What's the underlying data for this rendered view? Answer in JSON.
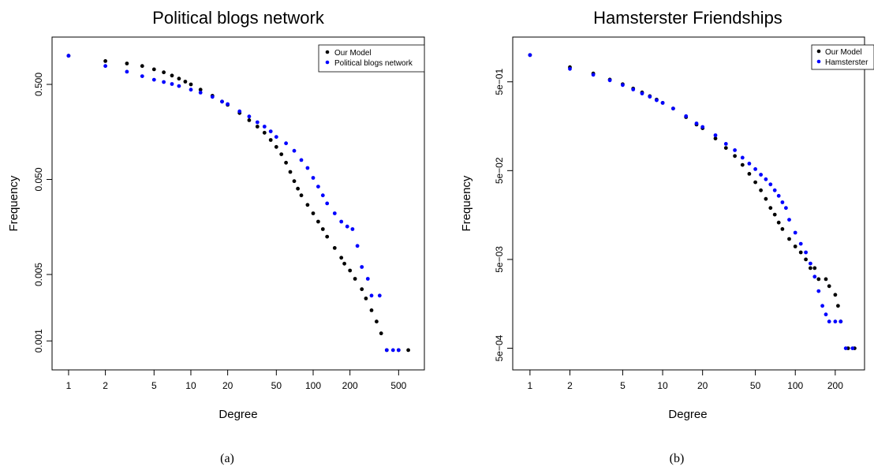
{
  "chart_data": [
    {
      "type": "scatter",
      "title": "Political blogs network",
      "xlabel": "Degree",
      "ylabel": "Frequency",
      "x_scale": "log",
      "y_scale": "log",
      "xlim": [
        0.85,
        700
      ],
      "ylim": [
        0.0006,
        1.3
      ],
      "x_ticks": [
        1,
        2,
        5,
        10,
        20,
        50,
        100,
        200,
        500
      ],
      "x_tick_labels": [
        "1",
        "2",
        "5",
        "10",
        "20",
        "50",
        "100",
        "200",
        "500"
      ],
      "y_ticks": [
        0.5,
        0.05,
        0.005,
        0.001
      ],
      "y_tick_labels": [
        "0.500",
        "0.050",
        "0.005",
        "0.001"
      ],
      "legend": {
        "position": "top-right",
        "entries": [
          {
            "name": "Our Model",
            "color": "#000000"
          },
          {
            "name": "Political blogs network",
            "color": "#0000ff"
          }
        ]
      },
      "series": [
        {
          "name": "Our Model",
          "color": "#000000",
          "points": [
            [
              1,
              1.0
            ],
            [
              2,
              0.88
            ],
            [
              3,
              0.83
            ],
            [
              4,
              0.78
            ],
            [
              5,
              0.72
            ],
            [
              6,
              0.67
            ],
            [
              7,
              0.62
            ],
            [
              8,
              0.575
            ],
            [
              9,
              0.535
            ],
            [
              10,
              0.5
            ],
            [
              12,
              0.44
            ],
            [
              15,
              0.38
            ],
            [
              18,
              0.33
            ],
            [
              20,
              0.305
            ],
            [
              25,
              0.25
            ],
            [
              30,
              0.21
            ],
            [
              35,
              0.18
            ],
            [
              40,
              0.155
            ],
            [
              45,
              0.13
            ],
            [
              50,
              0.11
            ],
            [
              55,
              0.092
            ],
            [
              60,
              0.075
            ],
            [
              65,
              0.06
            ],
            [
              70,
              0.048
            ],
            [
              75,
              0.04
            ],
            [
              80,
              0.034
            ],
            [
              90,
              0.027
            ],
            [
              100,
              0.022
            ],
            [
              110,
              0.018
            ],
            [
              120,
              0.015
            ],
            [
              130,
              0.0125
            ],
            [
              150,
              0.0095
            ],
            [
              170,
              0.0075
            ],
            [
              180,
              0.0065
            ],
            [
              200,
              0.0055
            ],
            [
              220,
              0.0045
            ],
            [
              250,
              0.0035
            ],
            [
              270,
              0.0028
            ],
            [
              300,
              0.0021
            ],
            [
              330,
              0.0016
            ],
            [
              360,
              0.0012
            ],
            [
              400,
              0.0008
            ],
            [
              500,
              0.0008
            ],
            [
              600,
              0.0008
            ]
          ]
        },
        {
          "name": "Political blogs network",
          "color": "#0000ff",
          "points": [
            [
              1,
              1.0
            ],
            [
              2,
              0.78
            ],
            [
              3,
              0.68
            ],
            [
              4,
              0.61
            ],
            [
              5,
              0.56
            ],
            [
              6,
              0.53
            ],
            [
              7,
              0.505
            ],
            [
              8,
              0.48
            ],
            [
              10,
              0.44
            ],
            [
              12,
              0.41
            ],
            [
              15,
              0.37
            ],
            [
              18,
              0.33
            ],
            [
              20,
              0.31
            ],
            [
              25,
              0.26
            ],
            [
              30,
              0.23
            ],
            [
              35,
              0.2
            ],
            [
              40,
              0.18
            ],
            [
              45,
              0.16
            ],
            [
              50,
              0.14
            ],
            [
              60,
              0.12
            ],
            [
              70,
              0.1
            ],
            [
              80,
              0.08
            ],
            [
              90,
              0.066
            ],
            [
              100,
              0.052
            ],
            [
              110,
              0.042
            ],
            [
              120,
              0.034
            ],
            [
              130,
              0.028
            ],
            [
              150,
              0.022
            ],
            [
              170,
              0.018
            ],
            [
              190,
              0.016
            ],
            [
              210,
              0.015
            ],
            [
              230,
              0.01
            ],
            [
              250,
              0.006
            ],
            [
              280,
              0.0045
            ],
            [
              300,
              0.003
            ],
            [
              350,
              0.003
            ],
            [
              400,
              0.0008
            ],
            [
              450,
              0.0008
            ],
            [
              500,
              0.0008
            ]
          ]
        }
      ]
    },
    {
      "type": "scatter",
      "title": "Hamsterster Friendships",
      "xlabel": "Degree",
      "ylabel": "Frequency",
      "x_scale": "log",
      "y_scale": "log",
      "xlim": [
        0.85,
        290
      ],
      "ylim": [
        0.00035,
        1.3
      ],
      "x_ticks": [
        1,
        2,
        5,
        10,
        20,
        50,
        100,
        200
      ],
      "x_tick_labels": [
        "1",
        "2",
        "5",
        "10",
        "20",
        "50",
        "100",
        "200"
      ],
      "y_ticks": [
        0.5,
        0.05,
        0.005,
        0.0005
      ],
      "y_tick_labels": [
        "5e−01",
        "5e−02",
        "5e−03",
        "5e−04"
      ],
      "legend": {
        "position": "top-right",
        "entries": [
          {
            "name": "Our Model",
            "color": "#000000"
          },
          {
            "name": "Hamsterster",
            "color": "#0000ff"
          }
        ]
      },
      "series": [
        {
          "name": "Our Model",
          "color": "#000000",
          "points": [
            [
              1,
              1.0
            ],
            [
              2,
              0.73
            ],
            [
              3,
              0.62
            ],
            [
              4,
              0.53
            ],
            [
              5,
              0.47
            ],
            [
              6,
              0.42
            ],
            [
              7,
              0.38
            ],
            [
              8,
              0.345
            ],
            [
              9,
              0.315
            ],
            [
              10,
              0.29
            ],
            [
              12,
              0.25
            ],
            [
              15,
              0.2
            ],
            [
              18,
              0.165
            ],
            [
              20,
              0.15
            ],
            [
              25,
              0.115
            ],
            [
              30,
              0.09
            ],
            [
              35,
              0.073
            ],
            [
              40,
              0.058
            ],
            [
              45,
              0.046
            ],
            [
              50,
              0.037
            ],
            [
              55,
              0.03
            ],
            [
              60,
              0.024
            ],
            [
              65,
              0.019
            ],
            [
              70,
              0.016
            ],
            [
              75,
              0.013
            ],
            [
              80,
              0.011
            ],
            [
              90,
              0.0085
            ],
            [
              100,
              0.007
            ],
            [
              110,
              0.006
            ],
            [
              120,
              0.005
            ],
            [
              130,
              0.004
            ],
            [
              140,
              0.004
            ],
            [
              150,
              0.003
            ],
            [
              170,
              0.003
            ],
            [
              180,
              0.0025
            ],
            [
              200,
              0.002
            ],
            [
              210,
              0.0015
            ],
            [
              220,
              0.001
            ],
            [
              250,
              0.0005
            ],
            [
              280,
              0.0005
            ]
          ]
        },
        {
          "name": "Hamsterster",
          "color": "#0000ff",
          "points": [
            [
              1,
              1.0
            ],
            [
              2,
              0.7
            ],
            [
              3,
              0.6
            ],
            [
              4,
              0.52
            ],
            [
              5,
              0.46
            ],
            [
              6,
              0.41
            ],
            [
              7,
              0.37
            ],
            [
              8,
              0.34
            ],
            [
              9,
              0.31
            ],
            [
              10,
              0.29
            ],
            [
              12,
              0.25
            ],
            [
              15,
              0.205
            ],
            [
              18,
              0.17
            ],
            [
              20,
              0.155
            ],
            [
              25,
              0.125
            ],
            [
              30,
              0.1
            ],
            [
              35,
              0.085
            ],
            [
              40,
              0.07
            ],
            [
              45,
              0.06
            ],
            [
              50,
              0.052
            ],
            [
              55,
              0.045
            ],
            [
              60,
              0.04
            ],
            [
              65,
              0.035
            ],
            [
              70,
              0.03
            ],
            [
              75,
              0.026
            ],
            [
              80,
              0.022
            ],
            [
              85,
              0.019
            ],
            [
              90,
              0.014
            ],
            [
              100,
              0.01
            ],
            [
              110,
              0.0075
            ],
            [
              120,
              0.006
            ],
            [
              130,
              0.0045
            ],
            [
              140,
              0.0032
            ],
            [
              150,
              0.0022
            ],
            [
              160,
              0.0015
            ],
            [
              170,
              0.0012
            ],
            [
              180,
              0.001
            ],
            [
              200,
              0.001
            ],
            [
              220,
              0.001
            ],
            [
              240,
              0.0005
            ],
            [
              270,
              0.0005
            ]
          ]
        }
      ]
    }
  ],
  "captions": [
    "(a)",
    "(b)"
  ]
}
